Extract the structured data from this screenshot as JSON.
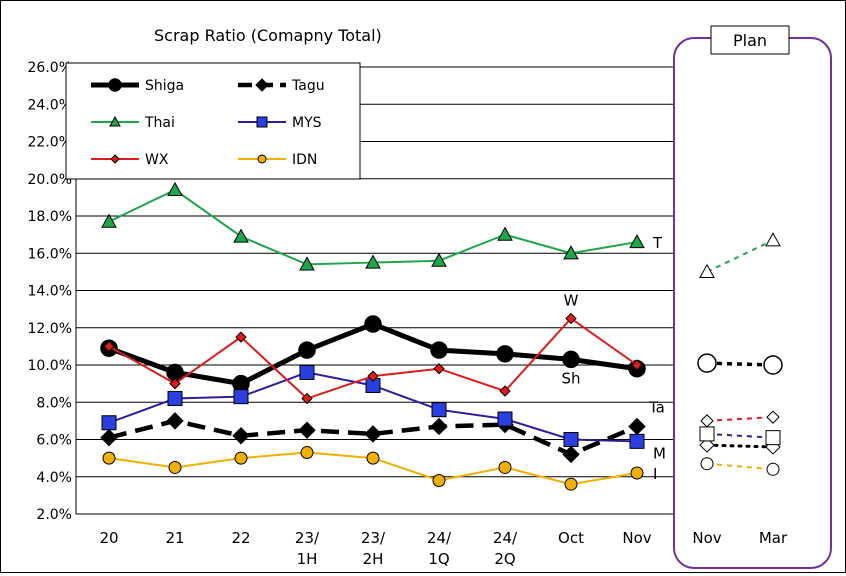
{
  "chart_data": {
    "type": "line",
    "title": "Scrap Ratio (Comapny Total)",
    "categories": [
      "20",
      "21",
      "22",
      "23/\n1H",
      "23/\n2H",
      "24/\n1Q",
      "24/\n2Q",
      "Oct",
      "Nov"
    ],
    "plan_categories": [
      "Nov",
      "Mar"
    ],
    "plan_label": "Plan",
    "ylim": [
      2.0,
      26.0
    ],
    "yticks": [
      "2.0%",
      "4.0%",
      "6.0%",
      "8.0%",
      "10.0%",
      "12.0%",
      "14.0%",
      "16.0%",
      "18.0%",
      "20.0%",
      "22.0%",
      "24.0%",
      "26.0%"
    ],
    "grid": true,
    "legend_position": "top-left",
    "series": [
      {
        "name": "Shiga",
        "color": "#000000",
        "marker": "circle",
        "dash": "solid",
        "values": [
          10.9,
          9.6,
          9.0,
          10.8,
          12.2,
          10.8,
          10.6,
          10.3,
          9.8
        ],
        "plan": [
          10.1,
          10.0
        ],
        "end_label": "Sh"
      },
      {
        "name": "Tagu",
        "color": "#000000",
        "marker": "diamond",
        "dash": "dash",
        "values": [
          6.1,
          7.0,
          6.2,
          6.5,
          6.3,
          6.7,
          6.8,
          5.2,
          6.7
        ],
        "plan": [
          5.7,
          5.6
        ],
        "end_label": "Ta"
      },
      {
        "name": "Thai",
        "color": "#1fa64b",
        "marker": "triangle",
        "dash": "solid",
        "values": [
          17.7,
          19.4,
          16.9,
          15.4,
          15.5,
          15.6,
          17.0,
          16.0,
          16.6
        ],
        "plan": [
          15.0,
          16.7
        ],
        "end_label": "T"
      },
      {
        "name": "MYS",
        "color": "#2b1e9c",
        "marker": "square",
        "dash": "solid",
        "values": [
          6.9,
          8.2,
          8.3,
          9.6,
          8.9,
          7.6,
          7.1,
          6.0,
          5.9
        ],
        "plan": [
          6.3,
          6.1
        ],
        "end_label": "M"
      },
      {
        "name": "WX",
        "color": "#e01b1b",
        "marker": "diamond-small",
        "dash": "solid",
        "values": [
          11.0,
          9.0,
          11.5,
          8.2,
          9.4,
          9.8,
          8.6,
          12.5,
          10.0
        ],
        "plan": [
          7.0,
          7.2
        ],
        "end_label": "W"
      },
      {
        "name": "IDN",
        "color": "#f0b000",
        "marker": "circle-small",
        "dash": "solid",
        "values": [
          5.0,
          4.5,
          5.0,
          5.3,
          5.0,
          3.8,
          4.5,
          3.6,
          4.2
        ],
        "plan": [
          4.7,
          4.4
        ],
        "end_label": "I"
      }
    ]
  }
}
